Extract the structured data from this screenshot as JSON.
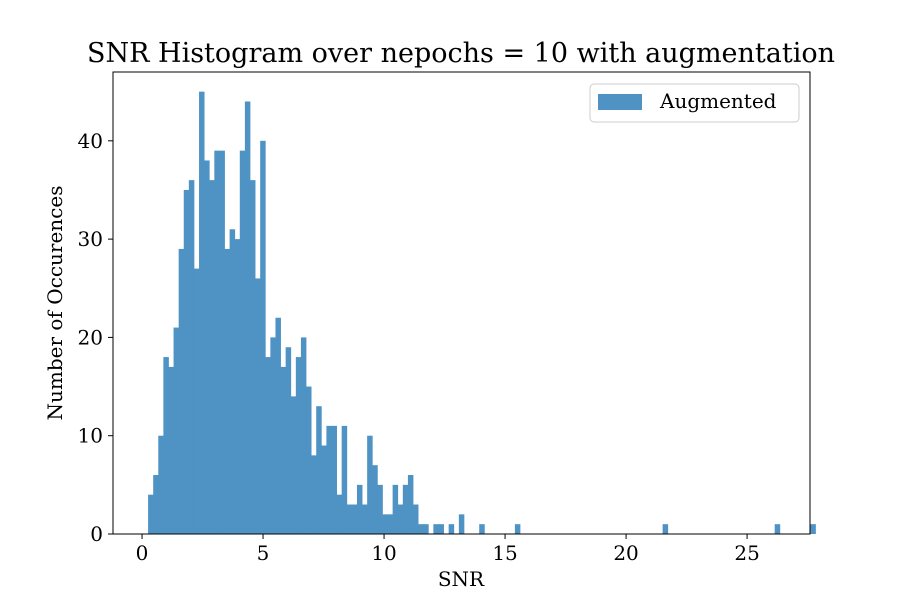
{
  "chart_data": {
    "type": "bar",
    "title": "SNR Histogram over nepochs = 10 with augmentation",
    "xlabel": "SNR",
    "ylabel": "Number of Occurences",
    "xlim": [
      -1.2,
      27.6
    ],
    "ylim": [
      0,
      47
    ],
    "xticks": [
      0,
      5,
      10,
      15,
      20,
      25
    ],
    "yticks": [
      0,
      10,
      20,
      30,
      40
    ],
    "grid": false,
    "legend": "top-right",
    "series": [
      {
        "name": "Augmented",
        "color": "#4f93c4",
        "bin_start": 0.25,
        "bin_width": 0.2105,
        "counts": [
          4,
          6,
          10,
          18,
          17,
          21,
          29,
          35,
          36,
          27,
          45,
          38,
          36,
          39,
          39,
          29,
          31,
          30,
          39,
          44,
          36,
          26,
          40,
          18,
          20,
          22,
          17,
          19,
          14,
          18,
          20,
          15,
          8,
          13,
          9,
          11,
          11,
          4,
          11,
          3,
          3,
          5,
          3,
          10,
          7,
          5,
          2,
          2,
          5,
          3,
          5,
          6,
          3,
          1,
          1,
          0,
          1,
          1,
          0,
          1,
          0,
          2,
          0,
          0,
          0,
          1,
          0,
          0,
          0,
          0,
          0,
          0,
          1,
          0,
          0,
          0,
          0,
          0,
          0,
          0,
          0,
          0,
          0,
          0,
          0,
          0,
          0,
          0,
          0,
          0,
          0,
          0,
          0,
          0,
          0,
          0,
          0,
          0,
          0,
          0,
          0,
          1,
          0,
          0,
          0,
          0,
          0,
          0,
          0,
          0,
          0,
          0,
          0,
          0,
          0,
          0,
          0,
          0,
          0,
          0,
          0,
          0,
          0,
          1,
          0,
          0,
          0,
          0,
          0,
          0,
          1
        ]
      }
    ]
  }
}
